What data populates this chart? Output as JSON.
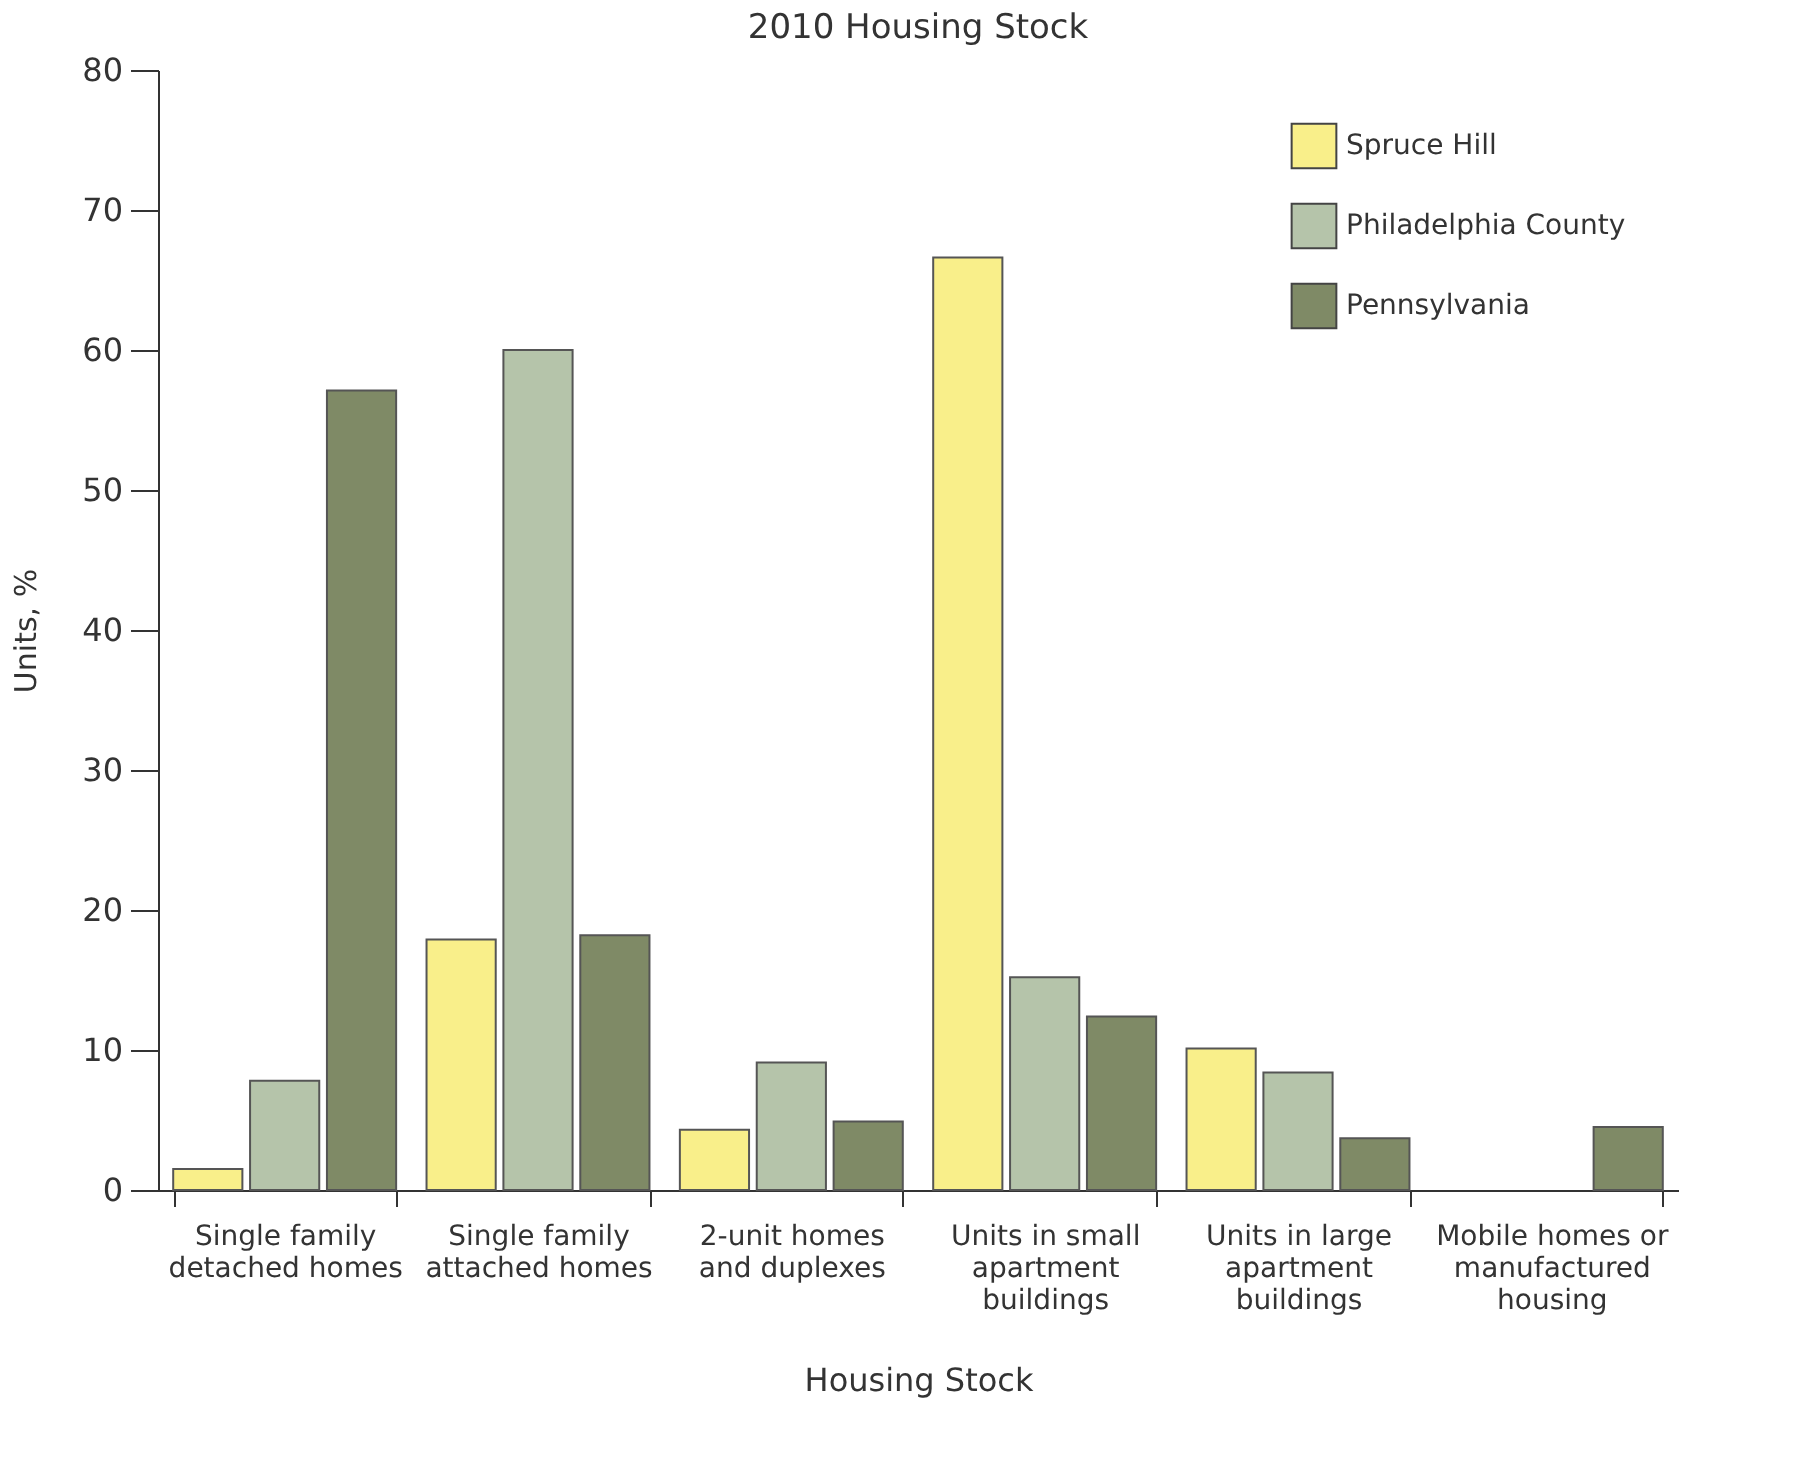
{
  "chart_data": {
    "type": "bar",
    "title": "2010 Housing Stock",
    "xlabel": "Housing Stock",
    "ylabel": "Units, %",
    "categories": [
      "Single family detached homes",
      "Single family attached homes",
      "2-unit homes and duplexes",
      "Units in small apartment buildings",
      "Units in large apartment buildings",
      "Mobile homes or manufactured housing"
    ],
    "series": [
      {
        "name": "Spruce Hill",
        "color": "#f9ef8a",
        "values": [
          1.5,
          17.9,
          4.3,
          66.6,
          10.1,
          null
        ]
      },
      {
        "name": "Philadelphia County",
        "color": "#b5c4aa",
        "values": [
          7.8,
          60,
          9.1,
          15.2,
          8.4,
          null
        ]
      },
      {
        "name": "Pennsylvania",
        "color": "#7f8a66",
        "values": [
          57.1,
          18.2,
          4.9,
          12.4,
          3.7,
          4.5
        ]
      }
    ],
    "ylim": [
      0,
      80
    ],
    "yticks": [
      0,
      10,
      20,
      30,
      40,
      50,
      60,
      70,
      80
    ],
    "grid": false,
    "legend": "top right"
  }
}
